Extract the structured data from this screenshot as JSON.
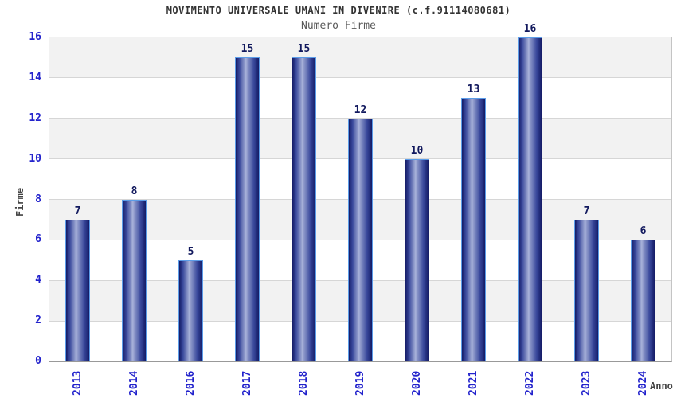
{
  "chart_data": {
    "type": "bar",
    "title": "MOVIMENTO UNIVERSALE UMANI IN DIVENIRE (c.f.91114080681)",
    "subtitle": "Numero Firme",
    "xlabel": "Anno",
    "ylabel": "Firme",
    "categories": [
      "2013",
      "2014",
      "2016",
      "2017",
      "2018",
      "2019",
      "2020",
      "2021",
      "2022",
      "2023",
      "2024"
    ],
    "values": [
      7,
      8,
      5,
      15,
      15,
      12,
      10,
      13,
      16,
      7,
      6
    ],
    "ylim": [
      0,
      16
    ],
    "ytick_step": 2,
    "ytick_labels": [
      "0",
      "2",
      "4",
      "6",
      "8",
      "10",
      "12",
      "14",
      "16"
    ],
    "grid": "horizontal gridlines every 2 units with alternating shaded bands, top band shaded",
    "legend": "none",
    "bar_style": "vertical cylinder gradient, navy edges with light blue-gray center highlight, light blue outline",
    "colors": {
      "bar_dark": "#141b66",
      "bar_mid_highlight": "#a9b3da",
      "bar_border": "#5b9ce8",
      "value_label": "#12195e",
      "tick_label": "#2323cc",
      "band_shade": "#f2f2f2",
      "gridline": "#d6d6d6",
      "plot_border": "#c4c4c4",
      "axis_line": "#999999",
      "title": "#333333",
      "subtitle": "#5a5a5a",
      "axis_title": "#444444",
      "background": "#ffffff"
    }
  }
}
